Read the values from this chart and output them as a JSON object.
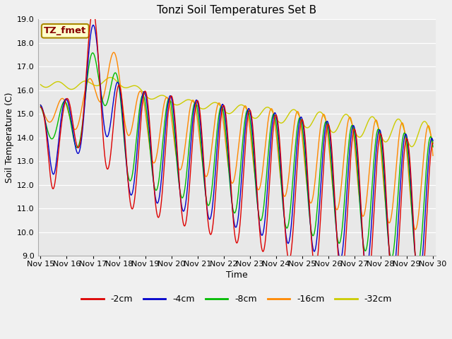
{
  "title": "Tonzi Soil Temperatures Set B",
  "xlabel": "Time",
  "ylabel": "Soil Temperature (C)",
  "ylim": [
    9.0,
    19.0
  ],
  "yticks": [
    9.0,
    10.0,
    11.0,
    12.0,
    13.0,
    14.0,
    15.0,
    16.0,
    17.0,
    18.0,
    19.0
  ],
  "legend_labels": [
    "-2cm",
    "-4cm",
    "-8cm",
    "-16cm",
    "-32cm"
  ],
  "legend_colors": [
    "#dd0000",
    "#0000cc",
    "#00bb00",
    "#ff8800",
    "#cccc00"
  ],
  "xtick_labels": [
    "Nov 15",
    "Nov 16",
    "Nov 17",
    "Nov 18",
    "Nov 19",
    "Nov 20",
    "Nov 21",
    "Nov 22",
    "Nov 23",
    "Nov 24",
    "Nov 25",
    "Nov 26",
    "Nov 27",
    "Nov 28",
    "Nov 29",
    "Nov 30"
  ],
  "annotation_text": "TZ_fmet",
  "annotation_box_color": "#ffffcc",
  "annotation_text_color": "#880000",
  "plot_bg_color": "#e8e8e8",
  "fig_bg_color": "#f0f0f0",
  "title_fontsize": 11,
  "axis_label_fontsize": 9,
  "tick_fontsize": 8
}
